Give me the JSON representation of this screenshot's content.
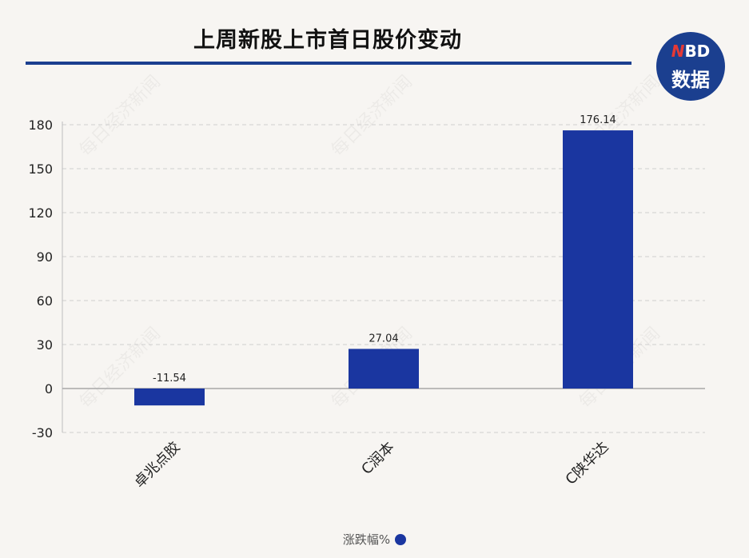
{
  "header": {
    "title": "上周新股上市首日股价变动",
    "logo_top": "NBD",
    "logo_bottom": "数据",
    "watermark": "每日经济新闻"
  },
  "colors": {
    "bar": "#1a36a0",
    "accent": "#1b3f8f",
    "grid": "#cfcfcf",
    "logo_n": "#e53935"
  },
  "chart_data": {
    "type": "bar",
    "title": "上周新股上市首日股价变动",
    "categories": [
      "卓兆点胶",
      "C润本",
      "C陕华达"
    ],
    "series": [
      {
        "name": "涨跌幅%",
        "values": [
          -11.54,
          27.04,
          176.14
        ]
      }
    ],
    "data_labels": [
      "-11.54",
      "27.04",
      "176.14"
    ],
    "yticks": [
      -30,
      0,
      30,
      60,
      90,
      120,
      150,
      180
    ],
    "ylim": [
      -30,
      180
    ],
    "grid": true,
    "legend_position": "bottom"
  }
}
